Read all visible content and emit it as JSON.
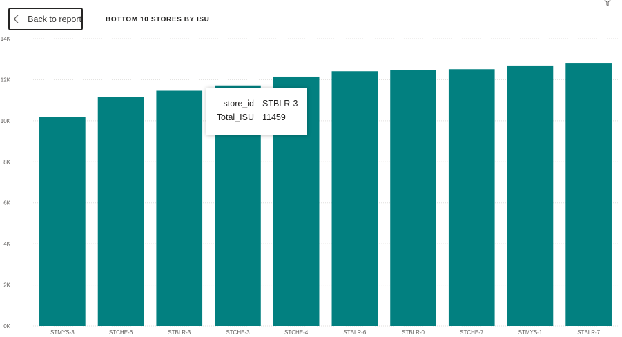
{
  "header": {
    "back_label": "Back to report",
    "title": "BOTTOM 10 STORES BY ISU"
  },
  "icons": {
    "back": "chevron-left-icon",
    "filter": "filter-icon"
  },
  "tooltip": {
    "key1": "store_id",
    "val1": "STBLR-3",
    "key2": "Total_ISU",
    "val2": "11459"
  },
  "colors": {
    "bar": "#028080",
    "grid": "#e1dfdd",
    "tick": "#605e5c"
  },
  "chart_data": {
    "type": "bar",
    "title": "BOTTOM 10 STORES BY ISU",
    "xlabel": "",
    "ylabel": "",
    "categories": [
      "STMYS-3",
      "STCHE-6",
      "STBLR-3",
      "STCHE-3",
      "STCHE-4",
      "STBLR-6",
      "STBLR-0",
      "STCHE-7",
      "STMYS-1",
      "STBLR-7"
    ],
    "values": [
      10180,
      11160,
      11459,
      11720,
      12150,
      12410,
      12460,
      12510,
      12690,
      12820
    ],
    "ylim": [
      0,
      14000
    ],
    "yticks": [
      0,
      2000,
      4000,
      6000,
      8000,
      10000,
      12000,
      14000
    ],
    "ytick_labels": [
      "0K",
      "2K",
      "4K",
      "6K",
      "8K",
      "10K",
      "12K",
      "14K"
    ],
    "grid": true,
    "legend": "none"
  }
}
